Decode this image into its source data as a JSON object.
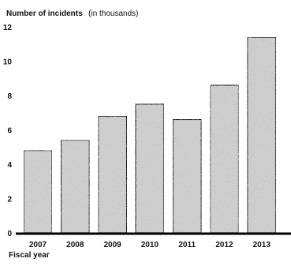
{
  "chart_data": {
    "type": "bar",
    "title": "",
    "ylabel": "Number of incidents",
    "ylabel_unit": "(in thousands)",
    "xlabel": "Fiscal year",
    "categories": [
      "2007",
      "2008",
      "2009",
      "2010",
      "2011",
      "2012",
      "2013"
    ],
    "values": [
      4.8,
      5.4,
      6.8,
      7.5,
      6.6,
      8.6,
      11.4
    ],
    "ylim": [
      0,
      12
    ],
    "yticks": [
      "0",
      "2",
      "4",
      "6",
      "8",
      "10",
      "12"
    ],
    "grid": false,
    "legend": "none",
    "colors": {
      "bar_fill": "#cfcfcf",
      "bar_stroke": "#111111",
      "axis": "#000000"
    }
  }
}
